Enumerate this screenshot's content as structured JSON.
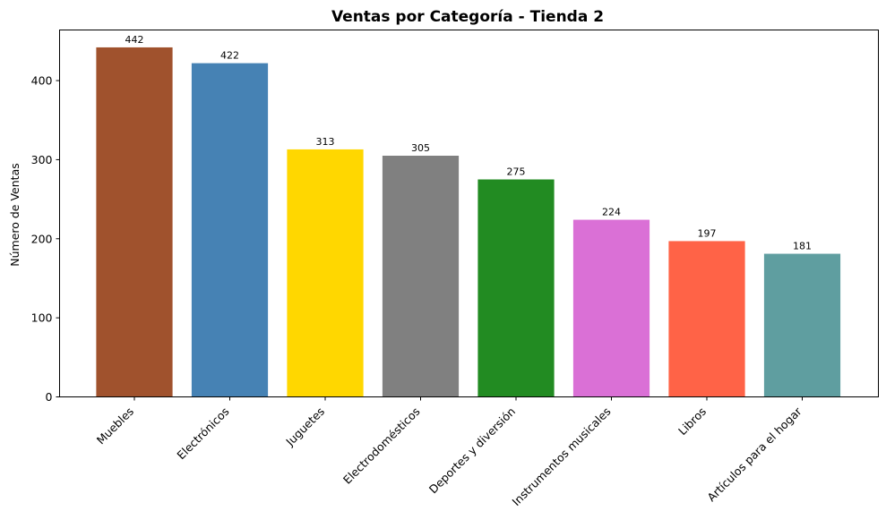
{
  "chart_data": {
    "type": "bar",
    "title": "Ventas por Categoría - Tienda 2",
    "xlabel": "",
    "ylabel": "Número de Ventas",
    "categories": [
      "Muebles",
      "Electrónicos",
      "Juguetes",
      "Electrodomésticos",
      "Deportes y diversión",
      "Instrumentos musicales",
      "Libros",
      "Artículos para el hogar"
    ],
    "values": [
      442,
      422,
      313,
      305,
      275,
      224,
      197,
      181
    ],
    "colors": [
      "#a0522d",
      "#4682b4",
      "#ffd700",
      "#808080",
      "#228b22",
      "#da70d6",
      "#ff6347",
      "#5f9ea0"
    ],
    "yticks": [
      0,
      100,
      200,
      300,
      400
    ],
    "ylim": [
      0,
      464
    ],
    "data_labels_visible": true,
    "grid": false,
    "legend": "none"
  }
}
